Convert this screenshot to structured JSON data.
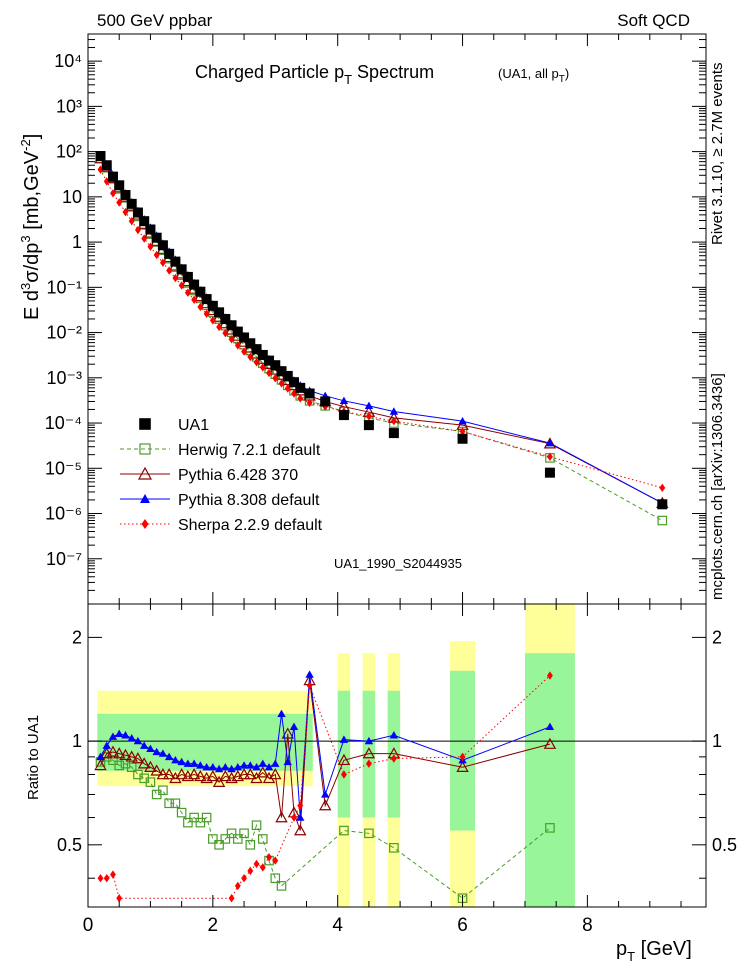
{
  "header": {
    "left": "500 GeV ppbar",
    "right": "Soft QCD",
    "side_top": "Rivet 3.1.10, ≥ 2.7M events",
    "side_bottom": "mcplots.cern.ch [arXiv:1306.3436]"
  },
  "chart_data": {
    "type": "scatter",
    "title": "Charged Particle p_T Spectrum",
    "subtitle": "(UA1, all p_T)",
    "analysis_id": "UA1_1990_S2044935",
    "xlabel": "p_T [GeV]",
    "ylabel": "E d³σ/dp³ [mb,GeV⁻²]",
    "ratio_ylabel": "Ratio to UA1",
    "xlim": [
      0,
      9.9
    ],
    "ylim_log10": [
      -8,
      4.6
    ],
    "ratio_ylim": [
      0.33,
      2.5
    ],
    "x_ticks": [
      "0",
      "2",
      "4",
      "6",
      "8"
    ],
    "y_ticks": [
      "10⁻⁷",
      "10⁻⁶",
      "10⁻⁵",
      "10⁻⁴",
      "10⁻³",
      "10⁻²",
      "10⁻¹",
      "1",
      "10",
      "10²",
      "10³",
      "10⁴"
    ],
    "ratio_y_ticks": [
      "0.5",
      "1",
      "2"
    ],
    "legend_position": "bottom-left",
    "x": [
      0.2,
      0.3,
      0.4,
      0.5,
      0.6,
      0.7,
      0.8,
      0.9,
      1.0,
      1.1,
      1.2,
      1.3,
      1.4,
      1.5,
      1.6,
      1.7,
      1.8,
      1.9,
      2.0,
      2.1,
      2.2,
      2.3,
      2.4,
      2.5,
      2.6,
      2.7,
      2.8,
      2.9,
      3.0,
      3.1,
      3.2,
      3.3,
      3.4,
      3.55,
      3.8,
      4.1,
      4.5,
      4.9,
      6.0,
      7.4,
      9.2
    ],
    "series": [
      {
        "name": "UA1",
        "color": "#000000",
        "marker": "square-filled",
        "values": [
          80,
          50,
          28,
          18,
          11,
          7,
          4.5,
          2.9,
          1.9,
          1.25,
          0.85,
          0.55,
          0.37,
          0.25,
          0.17,
          0.115,
          0.08,
          0.055,
          0.039,
          0.028,
          0.02,
          0.0145,
          0.0105,
          0.0078,
          0.0058,
          0.0043,
          0.0032,
          0.0024,
          0.0019,
          0.0014,
          0.0011,
          0.0008,
          0.0006,
          0.00045,
          0.0003,
          0.00015,
          9e-05,
          6e-05,
          4.5e-05,
          8e-06,
          1.6e-06
        ]
      },
      {
        "name": "Herwig 7.2.1 default",
        "color": "#4a9c2a",
        "marker": "square-open",
        "line": "dashed",
        "values": [
          72,
          44,
          25,
          15,
          9.5,
          6,
          3.7,
          2.4,
          1.5,
          1.0,
          0.66,
          0.43,
          0.28,
          0.185,
          0.125,
          0.085,
          0.058,
          0.04,
          0.028,
          0.02,
          0.0142,
          0.0102,
          0.0074,
          0.0054,
          0.004,
          0.0029,
          0.0021,
          0.0016,
          0.0012,
          0.0009,
          0.00068,
          0.00052,
          0.0004,
          0.00031,
          0.00024,
          0.00018,
          0.00013,
          0.0001,
          6.5e-05,
          1.7e-05,
          7e-07
        ]
      },
      {
        "name": "Pythia 6.428 370",
        "color": "#8b0000",
        "marker": "triangle-open",
        "line": "solid",
        "values": [
          70,
          46,
          26,
          16,
          10,
          6.3,
          4.0,
          2.5,
          1.6,
          1.05,
          0.7,
          0.46,
          0.3,
          0.2,
          0.135,
          0.092,
          0.063,
          0.044,
          0.031,
          0.022,
          0.0158,
          0.0115,
          0.0084,
          0.0062,
          0.0046,
          0.0034,
          0.0026,
          0.002,
          0.0015,
          0.00115,
          0.00088,
          0.00068,
          0.00052,
          0.0004,
          0.0003,
          0.00023,
          0.000175,
          0.00013,
          9e-05,
          3.5e-05,
          1.7e-06
        ]
      },
      {
        "name": "Pythia 8.308 default",
        "color": "#0000ff",
        "marker": "triangle-filled",
        "line": "solid",
        "values": [
          75,
          52,
          30,
          19,
          12,
          7.6,
          4.9,
          3.2,
          2.1,
          1.4,
          0.93,
          0.62,
          0.41,
          0.27,
          0.185,
          0.125,
          0.086,
          0.06,
          0.042,
          0.03,
          0.0215,
          0.0155,
          0.0113,
          0.0083,
          0.0061,
          0.0045,
          0.0034,
          0.0026,
          0.002,
          0.0015,
          0.00115,
          0.00088,
          0.00068,
          0.00052,
          0.0004,
          0.00031,
          0.00024,
          0.00018,
          0.00011,
          3.6e-05,
          1.7e-06
        ]
      },
      {
        "name": "Sherpa 2.2.9 default",
        "color": "#ff0000",
        "marker": "diamond-filled",
        "line": "dotted",
        "values": [
          40,
          22,
          12,
          7.5,
          4.6,
          2.9,
          1.85,
          1.2,
          0.79,
          0.52,
          0.35,
          0.235,
          0.16,
          0.11,
          0.076,
          0.053,
          0.037,
          0.026,
          0.0185,
          0.0133,
          0.0097,
          0.0071,
          0.0052,
          0.0038,
          0.0029,
          0.0022,
          0.0017,
          0.00128,
          0.00098,
          0.00075,
          0.00058,
          0.00045,
          0.00035,
          0.00028,
          0.00023,
          0.00018,
          0.00014,
          0.00011,
          6.5e-05,
          1.8e-05,
          3.7e-06
        ]
      }
    ],
    "ratio": {
      "reference": 1,
      "series": [
        {
          "name": "Herwig 7.2.1 default",
          "x": [
            0.2,
            0.3,
            0.4,
            0.5,
            0.6,
            0.7,
            0.8,
            0.9,
            1.0,
            1.1,
            1.2,
            1.3,
            1.4,
            1.5,
            1.6,
            1.7,
            1.8,
            1.9,
            2.0,
            2.1,
            2.2,
            2.3,
            2.4,
            2.5,
            2.6,
            2.7,
            2.8,
            2.9,
            3.0,
            3.1,
            4.1,
            4.5,
            4.9,
            6.0,
            7.4
          ],
          "values": [
            0.87,
            0.9,
            0.88,
            0.85,
            0.86,
            0.84,
            0.8,
            0.78,
            0.76,
            0.7,
            0.72,
            0.66,
            0.66,
            0.62,
            0.58,
            0.6,
            0.58,
            0.6,
            0.52,
            0.5,
            0.52,
            0.54,
            0.52,
            0.54,
            0.5,
            0.57,
            0.52,
            0.45,
            0.4,
            0.38,
            0.55,
            0.54,
            0.49,
            0.35,
            0.56
          ]
        },
        {
          "name": "Pythia 6.428 370",
          "x": [
            0.2,
            0.3,
            0.4,
            0.5,
            0.6,
            0.7,
            0.8,
            0.9,
            1.0,
            1.1,
            1.2,
            1.3,
            1.4,
            1.5,
            1.6,
            1.7,
            1.8,
            1.9,
            2.0,
            2.1,
            2.2,
            2.3,
            2.4,
            2.5,
            2.6,
            2.7,
            2.8,
            2.9,
            3.0,
            3.1,
            3.2,
            3.3,
            3.4,
            3.55,
            3.8,
            4.1,
            4.5,
            4.9,
            6.0,
            7.4
          ],
          "values": [
            0.85,
            0.92,
            0.93,
            0.92,
            0.91,
            0.9,
            0.89,
            0.86,
            0.84,
            0.82,
            0.8,
            0.8,
            0.78,
            0.8,
            0.79,
            0.8,
            0.79,
            0.78,
            0.79,
            0.76,
            0.79,
            0.78,
            0.79,
            0.8,
            0.8,
            0.78,
            0.81,
            0.78,
            0.8,
            0.6,
            1.05,
            0.62,
            0.55,
            1.5,
            0.65,
            0.88,
            0.92,
            0.92,
            0.84,
            0.98
          ]
        },
        {
          "name": "Pythia 8.308 default",
          "x": [
            0.2,
            0.3,
            0.4,
            0.5,
            0.6,
            0.7,
            0.8,
            0.9,
            1.0,
            1.1,
            1.2,
            1.3,
            1.4,
            1.5,
            1.6,
            1.7,
            1.8,
            1.9,
            2.0,
            2.1,
            2.2,
            2.3,
            2.4,
            2.5,
            2.6,
            2.7,
            2.8,
            2.9,
            3.0,
            3.1,
            3.2,
            3.3,
            3.4,
            3.55,
            3.8,
            4.1,
            4.5,
            4.9,
            6.0,
            7.4
          ],
          "values": [
            0.9,
            0.97,
            1.03,
            1.05,
            1.04,
            1.02,
            1.0,
            0.97,
            0.95,
            0.93,
            0.92,
            0.9,
            0.88,
            0.87,
            0.86,
            0.86,
            0.85,
            0.84,
            0.84,
            0.83,
            0.84,
            0.83,
            0.84,
            0.85,
            0.85,
            0.84,
            0.86,
            0.84,
            0.86,
            1.2,
            0.87,
            1.1,
            0.6,
            1.56,
            0.7,
            1.01,
            1.0,
            1.04,
            0.88,
            1.1
          ]
        },
        {
          "name": "Sherpa 2.2.9 default",
          "x": [
            0.2,
            0.3,
            0.4,
            0.5,
            2.3,
            2.4,
            2.5,
            2.6,
            2.7,
            2.8,
            2.9,
            3.0,
            3.3,
            3.4,
            3.55,
            4.1,
            4.5,
            4.9,
            6.0,
            7.4
          ],
          "values": [
            0.4,
            0.4,
            0.41,
            0.35,
            0.35,
            0.38,
            0.4,
            0.42,
            0.44,
            0.43,
            0.46,
            0.45,
            0.6,
            0.65,
            1.45,
            0.8,
            0.86,
            0.89,
            0.9,
            1.55
          ]
        }
      ],
      "uncertainty_bands": [
        {
          "x_range": [
            0.15,
            3.6
          ],
          "stat_syst_inner": [
            0.82,
            1.2
          ],
          "total_outer": [
            0.74,
            1.4
          ]
        },
        {
          "x_range": [
            4.0,
            4.2
          ],
          "stat_syst_inner": [
            0.6,
            1.4
          ],
          "total_outer": [
            0.3,
            1.8
          ]
        },
        {
          "x_range": [
            4.4,
            4.6
          ],
          "stat_syst_inner": [
            0.6,
            1.4
          ],
          "total_outer": [
            0.3,
            1.8
          ]
        },
        {
          "x_range": [
            4.8,
            5.0
          ],
          "stat_syst_inner": [
            0.6,
            1.4
          ],
          "total_outer": [
            0.3,
            1.8
          ]
        },
        {
          "x_range": [
            5.8,
            6.2
          ],
          "stat_syst_inner": [
            0.55,
            1.6
          ],
          "total_outer": [
            0.3,
            1.95
          ]
        },
        {
          "x_range": [
            7.0,
            7.8
          ],
          "stat_syst_inner": [
            0.3,
            1.8
          ],
          "total_outer": [
            0.3,
            2.5
          ]
        }
      ]
    }
  }
}
